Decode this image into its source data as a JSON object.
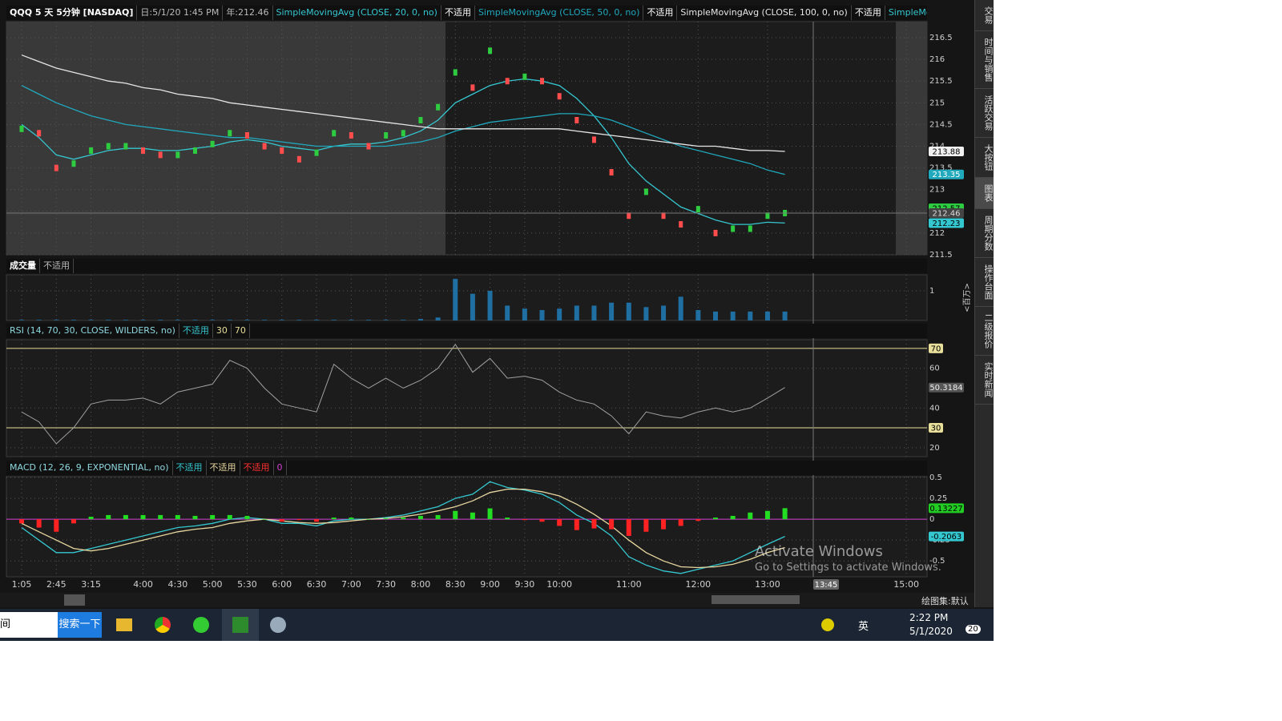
{
  "chart_data": [
    {
      "type": "line",
      "title": "QQQ 5 天 5分钟 [NASDAQ]",
      "info": [
        "日:5/1/20 1:45 PM",
        "年:212.46"
      ],
      "more": "SimpleMovingAvg ...",
      "colors": {
        "up": "#2ecc40",
        "down": "#ff4d4d"
      },
      "values": [
        214.4,
        214.3,
        213.5,
        213.6,
        213.9,
        214,
        214,
        213.9,
        213.8,
        213.8,
        213.9,
        214.05,
        214.3,
        214.25,
        214,
        213.9,
        213.7,
        213.85,
        214.3,
        214.25,
        214,
        214.25,
        214.3,
        214.6,
        214.9,
        215.7,
        215.35,
        216.2,
        215.5,
        215.6,
        215.5,
        215.15,
        214.6,
        214.15,
        213.4,
        212.4,
        212.95,
        212.4,
        212.2,
        212.55,
        212,
        212.1,
        212.1,
        212.4,
        212.46,
        null,
        null,
        null,
        null,
        null,
        null,
        null
      ],
      "series": [
        {
          "name": "SimpleMovingAvg (CLOSE, 20, 0, no)",
          "status": "不适用",
          "color": "#35c7d0",
          "values": [
            214.5,
            214.2,
            213.8,
            213.7,
            213.8,
            213.9,
            213.95,
            213.95,
            213.9,
            213.9,
            213.95,
            214,
            214.1,
            214.15,
            214.1,
            214,
            213.95,
            213.9,
            214,
            214.05,
            214.05,
            214.1,
            214.2,
            214.35,
            214.6,
            215,
            215.2,
            215.4,
            215.5,
            215.55,
            215.5,
            215.4,
            215.1,
            214.7,
            214.2,
            213.6,
            213.2,
            212.9,
            212.6,
            212.45,
            212.3,
            212.2,
            212.2,
            212.25,
            212.23,
            null,
            null,
            null,
            null,
            null,
            null,
            null
          ]
        },
        {
          "name": "SimpleMovingAvg (CLOSE, 50, 0, no)",
          "status": "不适用",
          "color": "#20a8bd",
          "values": [
            215.4,
            215.2,
            215,
            214.85,
            214.7,
            214.6,
            214.5,
            214.45,
            214.4,
            214.35,
            214.3,
            214.25,
            214.2,
            214.2,
            214.15,
            214.1,
            214.05,
            214,
            214,
            214,
            214,
            214,
            214.05,
            214.1,
            214.2,
            214.35,
            214.45,
            214.55,
            214.6,
            214.65,
            214.7,
            214.75,
            214.75,
            214.7,
            214.6,
            214.45,
            214.3,
            214.15,
            214,
            213.9,
            213.8,
            213.7,
            213.6,
            213.45,
            213.35,
            null,
            null,
            null,
            null,
            null,
            null,
            null
          ]
        },
        {
          "name": "SimpleMovingAvg (CLOSE, 100, 0, no)",
          "status": "不适用",
          "color": "#e6e6e6",
          "values": [
            216.1,
            215.95,
            215.8,
            215.7,
            215.6,
            215.5,
            215.45,
            215.35,
            215.3,
            215.2,
            215.15,
            215.1,
            215,
            214.95,
            214.9,
            214.85,
            214.8,
            214.75,
            214.7,
            214.65,
            214.6,
            214.55,
            214.5,
            214.45,
            214.4,
            214.4,
            214.4,
            214.4,
            214.4,
            214.4,
            214.4,
            214.4,
            214.35,
            214.3,
            214.25,
            214.2,
            214.15,
            214.1,
            214.05,
            214,
            214,
            213.95,
            213.9,
            213.9,
            213.88,
            null,
            null,
            null,
            null,
            null,
            null,
            null
          ]
        }
      ],
      "ylim": [
        211.5,
        216.87
      ],
      "yticks": [
        211.5,
        212,
        212.5,
        213,
        213.5,
        214,
        214.5,
        215,
        215.5,
        216,
        216.5
      ],
      "grid": true,
      "badges": [
        {
          "value": 213.88,
          "color": "#f0f0f0",
          "text_color": "#000000"
        },
        {
          "value": 213.35,
          "color": "#20a8bd",
          "text_color": "#ffffff"
        },
        {
          "value": 212.57,
          "color": "#2ecc40",
          "text_color": "#000000"
        },
        {
          "value": 212.46,
          "color": "#444444",
          "text_color": "#dddddd",
          "line": true
        },
        {
          "value": 212.23,
          "color": "#35c7d0",
          "text_color": "#000000"
        }
      ]
    },
    {
      "type": "bar",
      "title": "成交量",
      "status": "不适用",
      "unit": "<百万>",
      "color": "#1f6fa3",
      "values": [
        0.02,
        0.02,
        0.02,
        0.02,
        0.02,
        0.02,
        0.02,
        0.02,
        0.02,
        0.02,
        0.02,
        0.02,
        0.02,
        0.02,
        0.02,
        0.02,
        0.02,
        0.02,
        0.02,
        0.02,
        0.02,
        0.02,
        0.02,
        0.05,
        0.1,
        1.4,
        0.9,
        1,
        0.5,
        0.4,
        0.35,
        0.4,
        0.5,
        0.5,
        0.6,
        0.6,
        0.45,
        0.5,
        0.8,
        0.35,
        0.3,
        0.3,
        0.3,
        0.3,
        0.3,
        null,
        null,
        null,
        null,
        null,
        null,
        null
      ],
      "ylim": [
        0,
        1.54
      ],
      "yticks": [
        1
      ],
      "grid": true
    },
    {
      "type": "line",
      "title": "RSI (14, 70, 30, CLOSE, WILDERS, no)",
      "status": "不适用",
      "color": "#a0a0a0",
      "values": [
        38,
        33,
        22,
        30,
        42,
        44,
        44,
        45,
        42,
        48,
        50,
        52,
        64,
        60,
        50,
        42,
        40,
        38,
        62,
        55,
        50,
        55,
        50,
        54,
        60,
        72,
        58,
        65,
        55,
        56,
        54,
        48,
        44,
        42,
        36,
        27,
        38,
        36,
        35,
        38,
        40,
        38,
        40,
        45,
        50.3184,
        null,
        null,
        null,
        null,
        null,
        null,
        null
      ],
      "levels": [
        70,
        30
      ],
      "level_color": "#e8df9a",
      "ylim": [
        15.5,
        74.4
      ],
      "yticks": [
        20,
        40,
        60
      ],
      "grid": true,
      "badges": [
        {
          "value": 50.3184,
          "color": "#555555",
          "text_color": "#eeeeee"
        }
      ]
    },
    {
      "type": "line",
      "title": "MACD (12, 26, 9, EXPONENTIAL, no)",
      "series": [
        {
          "status": "不适用",
          "color": "#35c7d0",
          "values": [
            -0.1,
            -0.25,
            -0.4,
            -0.4,
            -0.35,
            -0.3,
            -0.25,
            -0.2,
            -0.15,
            -0.1,
            -0.08,
            -0.05,
            0,
            0.02,
            0,
            -0.05,
            -0.05,
            -0.08,
            -0.02,
            0,
            0,
            0.02,
            0.05,
            0.1,
            0.15,
            0.25,
            0.3,
            0.45,
            0.38,
            0.35,
            0.3,
            0.2,
            0.05,
            -0.05,
            -0.2,
            -0.45,
            -0.55,
            -0.62,
            -0.65,
            -0.6,
            -0.55,
            -0.5,
            -0.4,
            -0.3,
            -0.2063,
            null,
            null,
            null,
            null,
            null,
            null,
            null
          ]
        },
        {
          "status": "不适用",
          "color": "#e8d7a0",
          "values": [
            -0.05,
            -0.15,
            -0.25,
            -0.35,
            -0.38,
            -0.35,
            -0.3,
            -0.25,
            -0.2,
            -0.15,
            -0.12,
            -0.1,
            -0.05,
            -0.02,
            0,
            -0.02,
            -0.04,
            -0.05,
            -0.04,
            -0.02,
            0,
            0.01,
            0.03,
            0.06,
            0.1,
            0.15,
            0.22,
            0.32,
            0.36,
            0.36,
            0.33,
            0.28,
            0.18,
            0.06,
            -0.08,
            -0.25,
            -0.4,
            -0.5,
            -0.57,
            -0.58,
            -0.57,
            -0.54,
            -0.48,
            -0.4,
            -0.34,
            null,
            null,
            null,
            null,
            null,
            null,
            null
          ]
        },
        {
          "status": "不适用",
          "color": "#ff3030",
          "style": "histogram",
          "pos_color": "#22dd22",
          "neg_color": "#ff2222",
          "values": [
            -0.05,
            -0.1,
            -0.15,
            -0.05,
            0.03,
            0.05,
            0.05,
            0.05,
            0.05,
            0.05,
            0.04,
            0.05,
            0.05,
            0.04,
            0,
            -0.03,
            -0.01,
            -0.03,
            0.02,
            0.02,
            0,
            0.01,
            0.02,
            0.04,
            0.05,
            0.1,
            0.08,
            0.13,
            0.02,
            -0.01,
            -0.03,
            -0.08,
            -0.13,
            -0.11,
            -0.12,
            -0.2,
            -0.15,
            -0.12,
            -0.08,
            -0.02,
            0.02,
            0.04,
            0.08,
            0.1,
            0.13227,
            null,
            null,
            null,
            null,
            null,
            null,
            null
          ]
        }
      ],
      "levels": [
        0
      ],
      "level_color": "#d040d0",
      "ylim": [
        -0.69,
        0.51
      ],
      "yticks": [
        -0.5,
        -0.25,
        0,
        0.25,
        0.5
      ],
      "grid": true,
      "badges": [
        {
          "value": 0.13227,
          "color": "#22cc22",
          "text_color": "#000000"
        },
        {
          "value": -0.2063,
          "color": "#35c7d0",
          "text_color": "#000000"
        }
      ],
      "categories": [
        "1:05",
        null,
        "2:45",
        null,
        "3:15",
        null,
        null,
        "4:00",
        null,
        "4:30",
        null,
        "5:00",
        null,
        "5:30",
        null,
        "6:00",
        null,
        "6:30",
        null,
        "7:00",
        null,
        "7:30",
        null,
        "8:00",
        null,
        "8:30",
        null,
        "9:00",
        null,
        "9:30",
        null,
        "10:00",
        null,
        null,
        null,
        "11:00",
        null,
        null,
        null,
        "12:00",
        null,
        null,
        null,
        "13:00",
        null,
        null,
        null,
        null,
        null,
        null,
        null,
        "15:00"
      ],
      "cursor_label": "13:45"
    }
  ],
  "sidebar": {
    "tabs": [
      "交易",
      "时间与销售",
      "活跃交易",
      "大按钮",
      "图表",
      "周期分数",
      "操作台面",
      "二级报价",
      "实时新闻"
    ],
    "active": 4
  },
  "toolbar": {
    "drawing_set": "绘图集:默认"
  },
  "watermark": {
    "title": "Activate Windows",
    "body": "Go to Settings to activate Windows."
  },
  "taskbar": {
    "search_hint": "间",
    "search_button": "搜索一下",
    "ime": "英",
    "time": "2:22 PM",
    "date": "5/1/2020",
    "notifications": 20
  }
}
